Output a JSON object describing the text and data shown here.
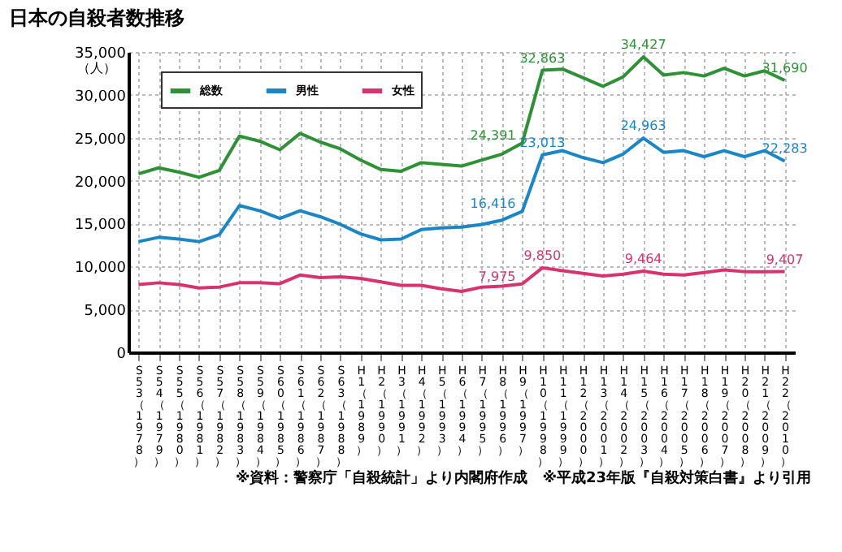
{
  "chart_data": {
    "type": "line",
    "title": "日本の自殺者数推移",
    "ylabel": "（人）",
    "categories": [
      "S53（1978）",
      "S54（1979）",
      "S55（1980）",
      "S56（1981）",
      "S57（1982）",
      "S58（1983）",
      "S59（1984）",
      "S60（1985）",
      "S61（1986）",
      "S62（1987）",
      "S63（1988）",
      "H1（1989）",
      "H2（1990）",
      "H3（1991）",
      "H4（1992）",
      "H5（1993）",
      "H6（1994）",
      "H7（1995）",
      "H8（1996）",
      "H9（1997）",
      "H10（1998）",
      "H11（1999）",
      "H12（2000）",
      "H13（2001）",
      "H14（2002）",
      "H15（2003）",
      "H16（2004）",
      "H17（2005）",
      "H18（2006）",
      "H19（2007）",
      "H20（2008）",
      "H21（2009）",
      "H22（2010）"
    ],
    "series": [
      {
        "name": "総数",
        "color": "#2e9136",
        "values": [
          20800,
          21500,
          21000,
          20400,
          21200,
          25200,
          24600,
          23600,
          25500,
          24500,
          23700,
          22400,
          21300,
          21100,
          22100,
          21900,
          21700,
          22400,
          23100,
          24391,
          32863,
          33000,
          32000,
          31000,
          32100,
          34427,
          32300,
          32600,
          32200,
          33100,
          32200,
          32800,
          31690
        ],
        "value_labels": [
          null,
          null,
          null,
          null,
          null,
          null,
          null,
          null,
          null,
          null,
          null,
          null,
          null,
          null,
          null,
          null,
          null,
          null,
          null,
          "24,391",
          "32,863",
          null,
          null,
          null,
          null,
          "34,427",
          null,
          null,
          null,
          null,
          null,
          null,
          "31,690"
        ]
      },
      {
        "name": "男性",
        "color": "#1b86c6",
        "values": [
          12900,
          13400,
          13200,
          12900,
          13700,
          17100,
          16500,
          15600,
          16500,
          15800,
          14900,
          13800,
          13100,
          13200,
          14300,
          14500,
          14600,
          14900,
          15400,
          16416,
          23013,
          23500,
          22700,
          22100,
          23100,
          24963,
          23300,
          23500,
          22800,
          23500,
          22800,
          23500,
          22283
        ],
        "value_labels": [
          null,
          null,
          null,
          null,
          null,
          null,
          null,
          null,
          null,
          null,
          null,
          null,
          null,
          null,
          null,
          null,
          null,
          null,
          null,
          "16,416",
          "23,013",
          null,
          null,
          null,
          null,
          "24,963",
          null,
          null,
          null,
          null,
          null,
          null,
          "22,283"
        ]
      },
      {
        "name": "女性",
        "color": "#d9336f",
        "values": [
          7900,
          8100,
          7900,
          7500,
          7600,
          8100,
          8100,
          8000,
          9000,
          8700,
          8800,
          8600,
          8200,
          7800,
          7800,
          7400,
          7100,
          7600,
          7700,
          7975,
          9850,
          9500,
          9200,
          8900,
          9100,
          9464,
          9100,
          9000,
          9300,
          9600,
          9400,
          9400,
          9407
        ],
        "value_labels": [
          null,
          null,
          null,
          null,
          null,
          null,
          null,
          null,
          null,
          null,
          null,
          null,
          null,
          null,
          null,
          null,
          null,
          null,
          null,
          "7,975",
          "9,850",
          null,
          null,
          null,
          null,
          "9,464",
          null,
          null,
          null,
          null,
          null,
          null,
          "9,407"
        ]
      }
    ],
    "ylim": [
      0,
      35000
    ],
    "yticks": [
      0,
      {
        "value": 5000,
        "label": "5,000"
      },
      {
        "value": 10000,
        "label": "10,000"
      },
      {
        "value": 15000,
        "label": "15,000"
      },
      {
        "value": 20000,
        "label": "20,000"
      },
      {
        "value": 25000,
        "label": "25,000"
      },
      {
        "value": 30000,
        "label": "30,000"
      },
      {
        "value": 35000,
        "label": "35,000"
      }
    ],
    "grid": true,
    "legend": "top left",
    "marker": "none",
    "line_style": "solid",
    "annotations": [
      "※資料：警察庁「自殺統計」より内閣府作成　※平成23年版『自殺対策白書』より引用"
    ]
  }
}
